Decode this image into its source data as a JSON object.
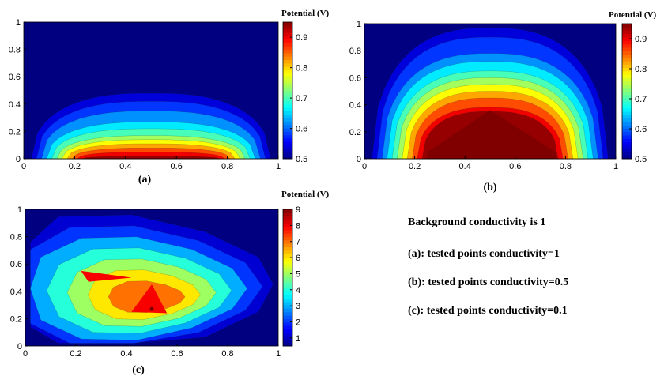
{
  "chart_data": [
    {
      "type": "heatmap",
      "caption": "(a)",
      "colorbar_title": "Potential (V)",
      "x_ticks": [
        "0",
        "0.2",
        "0.4",
        "0.6",
        "0.8",
        "1"
      ],
      "y_ticks": [
        "0",
        "0.2",
        "0.4",
        "0.6",
        "0.8",
        "1"
      ],
      "xlim": [
        0,
        1
      ],
      "ylim": [
        0,
        1
      ],
      "colorbar_range": [
        0.5,
        0.95
      ],
      "colorbar_ticks": [
        "0.5",
        "0.6",
        "0.7",
        "0.8",
        "0.9"
      ],
      "levels": [
        0.54,
        0.58,
        0.62,
        0.66,
        0.7,
        0.74,
        0.78,
        0.82,
        0.86,
        0.9,
        0.94
      ],
      "dome_heights": [
        0.48,
        0.42,
        0.35,
        0.27,
        0.22,
        0.17,
        0.14,
        0.11,
        0.08,
        0.05,
        0.02
      ]
    },
    {
      "type": "heatmap",
      "caption": "(b)",
      "colorbar_title": "Potential (V)",
      "x_ticks": [
        "0",
        "0.2",
        "0.4",
        "0.6",
        "0.8",
        "1"
      ],
      "y_ticks": [
        "0",
        "0.2",
        "0.4",
        "0.6",
        "0.8",
        "1"
      ],
      "xlim": [
        0,
        1
      ],
      "ylim": [
        0,
        1
      ],
      "colorbar_range": [
        0.5,
        0.95
      ],
      "colorbar_ticks": [
        "0.5",
        "0.6",
        "0.7",
        "0.8",
        "0.9"
      ],
      "levels": [
        0.54,
        0.58,
        0.62,
        0.66,
        0.7,
        0.74,
        0.78,
        0.82,
        0.86,
        0.9,
        0.94
      ],
      "dome_heights": [
        0.97,
        0.9,
        0.78,
        0.72,
        0.65,
        0.6,
        0.55,
        0.5,
        0.45,
        0.38,
        0.35
      ]
    },
    {
      "type": "heatmap",
      "caption": "(c)",
      "colorbar_title": "Potential (V)",
      "x_ticks": [
        "0",
        "0.2",
        "0.4",
        "0.6",
        "0.8",
        "1"
      ],
      "y_ticks": [
        "0",
        "0.2",
        "0.4",
        "0.6",
        "0.8",
        "1"
      ],
      "xlim": [
        0,
        1
      ],
      "ylim": [
        0,
        1
      ],
      "colorbar_range": [
        0.5,
        9
      ],
      "colorbar_ticks": [
        "1",
        "2",
        "3",
        "4",
        "5",
        "6",
        "7",
        "8",
        "9"
      ],
      "levels": [
        1.2,
        2,
        3,
        4,
        5,
        6,
        7
      ],
      "peak_point": [
        0.5,
        0.27
      ]
    }
  ],
  "notes": {
    "background": "Background conductivity is 1",
    "a": "(a):  tested points conductivity=1",
    "b": "(b):  tested points conductivity=0.5",
    "c": "(c):  tested points conductivity=0.1"
  }
}
